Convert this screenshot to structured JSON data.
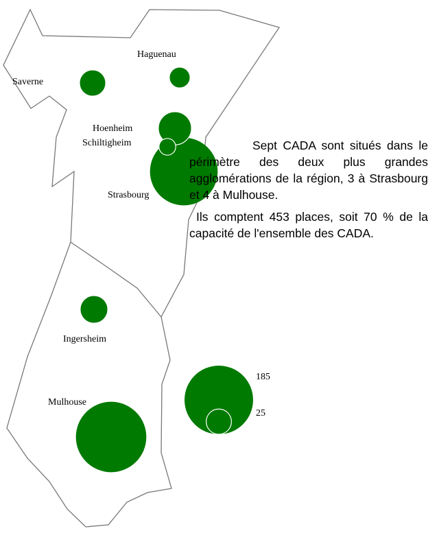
{
  "map": {
    "places": [
      {
        "name": "Strasbourg",
        "value": 180
      },
      {
        "name": "Mulhouse",
        "value": 195
      },
      {
        "name": "Hoenheim",
        "value": 43
      },
      {
        "name": "Ingersheim",
        "value": 30
      },
      {
        "name": "Saverne",
        "value": 27
      },
      {
        "name": "Haguenau",
        "value": 17
      },
      {
        "name": "Schiltigheim",
        "value": 11
      }
    ],
    "legend": {
      "values": [
        185,
        25
      ]
    },
    "text": [
      "Sept CADA sont situés dans le périmètre des deux plus grandes agglomérations de la région, 3 à Strasbourg et 4 à Mulhouse.",
      "Ils comptent 453 places, soit 70 % de la capacité de l'ensemble des CADA."
    ]
  }
}
